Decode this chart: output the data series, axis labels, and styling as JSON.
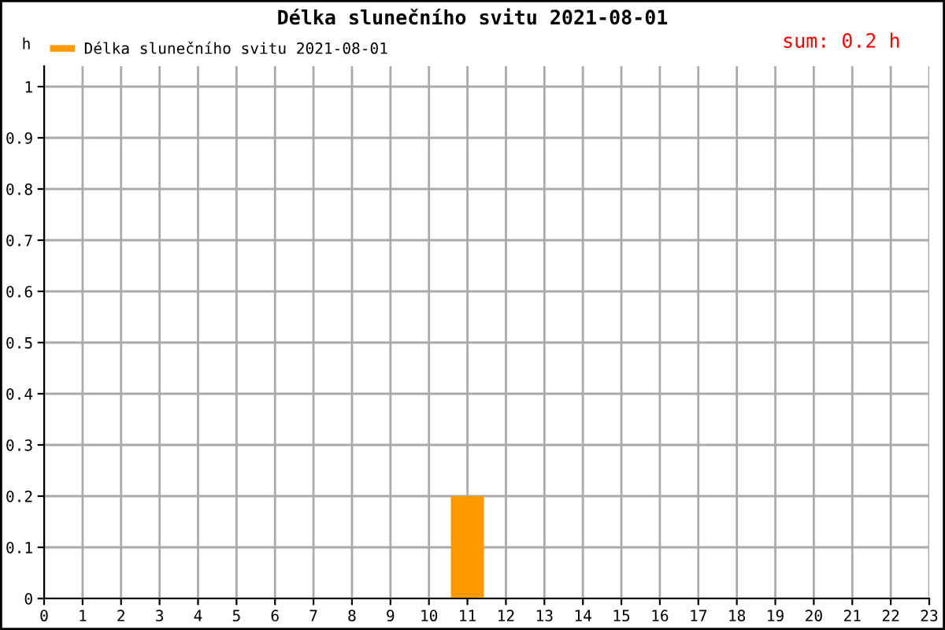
{
  "chart_data": {
    "type": "bar",
    "title": "Délka slunečního svitu 2021-08-01",
    "ylabel": "h",
    "annotations": [
      "sum: 0.2 h"
    ],
    "x": [
      0,
      1,
      2,
      3,
      4,
      5,
      6,
      7,
      8,
      9,
      10,
      11,
      12,
      13,
      14,
      15,
      16,
      17,
      18,
      19,
      20,
      21,
      22
    ],
    "series": [
      {
        "name": "Délka slunečního svitu 2021-08-01",
        "color": "#ff9900",
        "values": [
          0,
          0,
          0,
          0,
          0,
          0,
          0,
          0,
          0,
          0,
          0,
          0.2,
          0,
          0,
          0,
          0,
          0,
          0,
          0,
          0,
          0,
          0,
          0
        ]
      }
    ],
    "xlim": [
      0,
      23
    ],
    "xticks": [
      0,
      1,
      2,
      3,
      4,
      5,
      6,
      7,
      8,
      9,
      10,
      11,
      12,
      13,
      14,
      15,
      16,
      17,
      18,
      19,
      20,
      21,
      22,
      23
    ],
    "ylim": [
      0,
      1.04
    ],
    "yticks": [
      0,
      0.1,
      0.2,
      0.3,
      0.4,
      0.5,
      0.6,
      0.7,
      0.8,
      0.9,
      1
    ],
    "grid": true,
    "legend": "top left"
  }
}
